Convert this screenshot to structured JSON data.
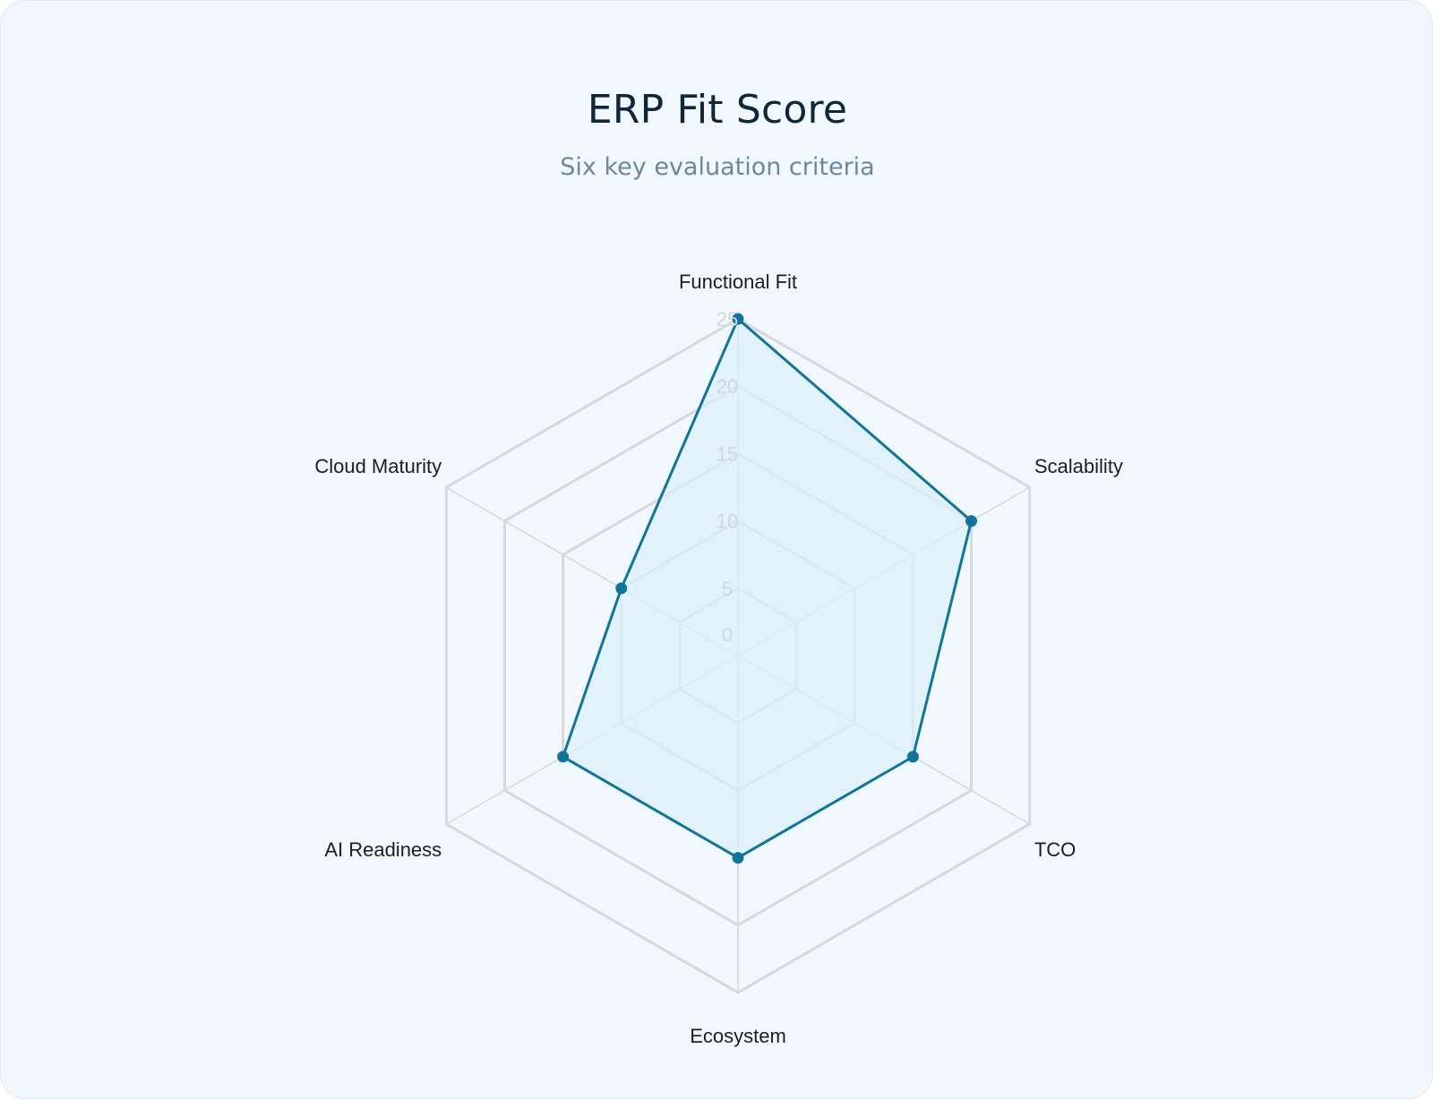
{
  "header": {
    "title": "ERP Fit Score",
    "subtitle": "Six key evaluation criteria"
  },
  "chart_data": {
    "type": "radar",
    "title": "ERP Fit Score",
    "subtitle": "Six key evaluation criteria",
    "categories": [
      "Functional Fit",
      "Scalability",
      "TCO",
      "Ecosystem",
      "AI Readiness",
      "Cloud Maturity"
    ],
    "values": [
      25,
      20,
      15,
      15,
      15,
      10
    ],
    "rlim": [
      0,
      25
    ],
    "ticks": [
      0,
      5,
      10,
      15,
      20,
      25
    ],
    "grid": true,
    "legend": "none",
    "colors": {
      "line": "#11759a",
      "fill": "#dcf0fa",
      "grid": "#d6d8da",
      "tick": "#d2d6da"
    }
  }
}
